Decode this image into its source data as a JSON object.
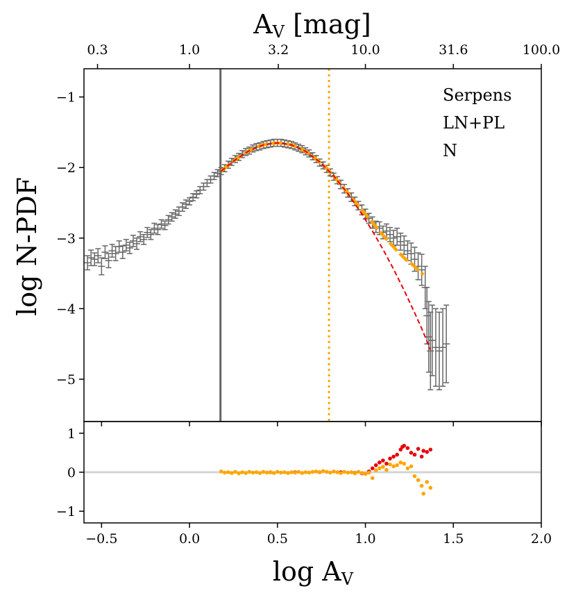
{
  "chart_data": {
    "type": "scatter",
    "title": "",
    "legend": [
      "Serpens",
      "LN+PL",
      "N"
    ],
    "xlabel_main": "log A",
    "xlabel_sub": "V",
    "ylabel": "log N-PDF",
    "top_xlabel_main": "A",
    "top_xlabel_sub": "V",
    "top_xlabel_rest": " [mag]",
    "xlim": [
      -0.6,
      2.0
    ],
    "ylim": [
      -5.6,
      -0.6
    ],
    "residual_ylim": [
      -1.3,
      1.3
    ],
    "x_ticks": [
      -0.5,
      0.0,
      0.5,
      1.0,
      1.5,
      2.0
    ],
    "x_tick_labels": [
      "−0.5",
      "0.0",
      "0.5",
      "1.0",
      "1.5",
      "2.0"
    ],
    "y_ticks": [
      -1,
      -2,
      -3,
      -4,
      -5
    ],
    "y_tick_labels": [
      "−1",
      "−2",
      "−3",
      "−4",
      "−5"
    ],
    "residual_y_ticks": [
      1,
      0,
      -1
    ],
    "residual_y_tick_labels": [
      "1",
      "0",
      "−1"
    ],
    "top_ticks": [
      -0.523,
      0.0,
      0.505,
      1.0,
      1.5,
      2.0
    ],
    "top_tick_labels": [
      "0.3",
      "1.0",
      "3.2",
      "10.0",
      "31.6",
      "100.0"
    ],
    "completeness_line_x": 0.176,
    "transition_line_x": 0.793,
    "data_points": [
      [
        -0.58,
        -3.35,
        0.1
      ],
      [
        -0.56,
        -3.28,
        0.11
      ],
      [
        -0.54,
        -3.3,
        0.09
      ],
      [
        -0.52,
        -3.25,
        0.1
      ],
      [
        -0.5,
        -3.4,
        0.12
      ],
      [
        -0.48,
        -3.2,
        0.09
      ],
      [
        -0.46,
        -3.32,
        0.1
      ],
      [
        -0.44,
        -3.18,
        0.09
      ],
      [
        -0.42,
        -3.22,
        0.1
      ],
      [
        -0.4,
        -3.12,
        0.08
      ],
      [
        -0.38,
        -3.2,
        0.09
      ],
      [
        -0.36,
        -3.1,
        0.08
      ],
      [
        -0.34,
        -3.14,
        0.08
      ],
      [
        -0.32,
        -3.04,
        0.08
      ],
      [
        -0.3,
        -3.08,
        0.08
      ],
      [
        -0.28,
        -2.98,
        0.07
      ],
      [
        -0.26,
        -3.02,
        0.07
      ],
      [
        -0.24,
        -2.92,
        0.07
      ],
      [
        -0.22,
        -2.95,
        0.07
      ],
      [
        -0.2,
        -2.86,
        0.07
      ],
      [
        -0.18,
        -2.88,
        0.07
      ],
      [
        -0.16,
        -2.8,
        0.06
      ],
      [
        -0.14,
        -2.82,
        0.06
      ],
      [
        -0.12,
        -2.74,
        0.06
      ],
      [
        -0.1,
        -2.7,
        0.06
      ],
      [
        -0.08,
        -2.66,
        0.06
      ],
      [
        -0.06,
        -2.62,
        0.06
      ],
      [
        -0.04,
        -2.56,
        0.06
      ],
      [
        -0.02,
        -2.52,
        0.06
      ],
      [
        0.0,
        -2.48,
        0.05
      ],
      [
        0.02,
        -2.42,
        0.05
      ],
      [
        0.04,
        -2.38,
        0.05
      ],
      [
        0.06,
        -2.32,
        0.05
      ],
      [
        0.08,
        -2.27,
        0.05
      ],
      [
        0.1,
        -2.22,
        0.05
      ],
      [
        0.12,
        -2.17,
        0.05
      ],
      [
        0.14,
        -2.12,
        0.05
      ],
      [
        0.16,
        -2.08,
        0.05
      ],
      [
        0.18,
        -2.05,
        0.05
      ],
      [
        0.2,
        -2.01,
        0.05
      ],
      [
        0.22,
        -1.96,
        0.05
      ],
      [
        0.24,
        -1.92,
        0.05
      ],
      [
        0.26,
        -1.88,
        0.05
      ],
      [
        0.28,
        -1.85,
        0.05
      ],
      [
        0.3,
        -1.81,
        0.05
      ],
      [
        0.32,
        -1.78,
        0.05
      ],
      [
        0.34,
        -1.76,
        0.05
      ],
      [
        0.36,
        -1.73,
        0.05
      ],
      [
        0.38,
        -1.71,
        0.05
      ],
      [
        0.4,
        -1.7,
        0.05
      ],
      [
        0.42,
        -1.68,
        0.05
      ],
      [
        0.44,
        -1.67,
        0.05
      ],
      [
        0.46,
        -1.66,
        0.05
      ],
      [
        0.48,
        -1.65,
        0.05
      ],
      [
        0.5,
        -1.65,
        0.05
      ],
      [
        0.52,
        -1.65,
        0.05
      ],
      [
        0.54,
        -1.66,
        0.05
      ],
      [
        0.56,
        -1.67,
        0.05
      ],
      [
        0.58,
        -1.68,
        0.05
      ],
      [
        0.6,
        -1.7,
        0.05
      ],
      [
        0.62,
        -1.72,
        0.05
      ],
      [
        0.64,
        -1.74,
        0.05
      ],
      [
        0.66,
        -1.77,
        0.05
      ],
      [
        0.68,
        -1.8,
        0.05
      ],
      [
        0.7,
        -1.84,
        0.05
      ],
      [
        0.72,
        -1.88,
        0.05
      ],
      [
        0.74,
        -1.93,
        0.05
      ],
      [
        0.76,
        -1.97,
        0.05
      ],
      [
        0.78,
        -2.02,
        0.05
      ],
      [
        0.8,
        -2.07,
        0.05
      ],
      [
        0.82,
        -2.13,
        0.05
      ],
      [
        0.84,
        -2.18,
        0.05
      ],
      [
        0.86,
        -2.24,
        0.06
      ],
      [
        0.88,
        -2.3,
        0.06
      ],
      [
        0.9,
        -2.36,
        0.06
      ],
      [
        0.92,
        -2.42,
        0.06
      ],
      [
        0.94,
        -2.48,
        0.06
      ],
      [
        0.96,
        -2.54,
        0.06
      ],
      [
        0.98,
        -2.6,
        0.07
      ],
      [
        1.0,
        -2.66,
        0.07
      ],
      [
        1.02,
        -2.72,
        0.07
      ],
      [
        1.04,
        -2.78,
        0.08
      ],
      [
        1.06,
        -2.84,
        0.08
      ],
      [
        1.08,
        -2.86,
        0.09
      ],
      [
        1.1,
        -2.92,
        0.09
      ],
      [
        1.12,
        -2.9,
        0.1
      ],
      [
        1.14,
        -2.95,
        0.1
      ],
      [
        1.16,
        -3.0,
        0.11
      ],
      [
        1.18,
        -2.98,
        0.12
      ],
      [
        1.2,
        -3.05,
        0.12
      ],
      [
        1.22,
        -3.1,
        0.13
      ],
      [
        1.24,
        -3.18,
        0.14
      ],
      [
        1.26,
        -3.22,
        0.15
      ],
      [
        1.28,
        -3.3,
        0.17
      ],
      [
        1.3,
        -3.4,
        0.19
      ],
      [
        1.32,
        -3.45,
        0.22
      ],
      [
        1.34,
        -3.7,
        0.3
      ],
      [
        1.35,
        -4.1,
        0.4
      ],
      [
        1.36,
        -4.4,
        0.5
      ],
      [
        1.37,
        -4.6,
        0.55
      ],
      [
        1.38,
        -4.45,
        0.5
      ],
      [
        1.4,
        -4.55,
        0.55
      ],
      [
        1.42,
        -4.6,
        0.55
      ],
      [
        1.44,
        -4.55,
        0.55
      ],
      [
        1.46,
        -4.5,
        0.55
      ]
    ],
    "ln_pl_fit": [
      [
        0.18,
        -2.05
      ],
      [
        0.22,
        -1.97
      ],
      [
        0.26,
        -1.89
      ],
      [
        0.3,
        -1.82
      ],
      [
        0.34,
        -1.76
      ],
      [
        0.38,
        -1.71
      ],
      [
        0.42,
        -1.68
      ],
      [
        0.46,
        -1.66
      ],
      [
        0.5,
        -1.65
      ],
      [
        0.54,
        -1.66
      ],
      [
        0.58,
        -1.68
      ],
      [
        0.62,
        -1.72
      ],
      [
        0.66,
        -1.77
      ],
      [
        0.7,
        -1.84
      ],
      [
        0.74,
        -1.92
      ],
      [
        0.78,
        -2.01
      ],
      [
        0.82,
        -2.12
      ],
      [
        0.86,
        -2.24
      ],
      [
        0.9,
        -2.36
      ],
      [
        0.94,
        -2.48
      ],
      [
        0.98,
        -2.6
      ],
      [
        1.02,
        -2.72
      ],
      [
        1.06,
        -2.84
      ],
      [
        1.1,
        -2.96
      ],
      [
        1.14,
        -3.07
      ],
      [
        1.18,
        -3.18
      ],
      [
        1.22,
        -3.28
      ],
      [
        1.26,
        -3.36
      ],
      [
        1.3,
        -3.45
      ],
      [
        1.33,
        -3.52
      ]
    ],
    "ln_fit": [
      [
        0.18,
        -2.05
      ],
      [
        0.26,
        -1.89
      ],
      [
        0.34,
        -1.76
      ],
      [
        0.42,
        -1.68
      ],
      [
        0.5,
        -1.65
      ],
      [
        0.58,
        -1.68
      ],
      [
        0.66,
        -1.77
      ],
      [
        0.74,
        -1.92
      ],
      [
        0.82,
        -2.12
      ],
      [
        0.9,
        -2.37
      ],
      [
        0.98,
        -2.66
      ],
      [
        1.04,
        -2.9
      ],
      [
        1.1,
        -3.16
      ],
      [
        1.16,
        -3.44
      ],
      [
        1.22,
        -3.74
      ],
      [
        1.28,
        -4.06
      ],
      [
        1.32,
        -4.28
      ],
      [
        1.37,
        -4.58
      ]
    ],
    "residuals_ln_pl": [
      [
        0.18,
        0.02
      ],
      [
        0.2,
        -0.01
      ],
      [
        0.22,
        0.0
      ],
      [
        0.24,
        -0.02
      ],
      [
        0.26,
        0.01
      ],
      [
        0.28,
        -0.03
      ],
      [
        0.3,
        0.0
      ],
      [
        0.32,
        -0.02
      ],
      [
        0.34,
        0.01
      ],
      [
        0.36,
        -0.01
      ],
      [
        0.38,
        0.0
      ],
      [
        0.4,
        -0.02
      ],
      [
        0.42,
        0.01
      ],
      [
        0.44,
        -0.01
      ],
      [
        0.46,
        0.0
      ],
      [
        0.48,
        -0.02
      ],
      [
        0.5,
        0.01
      ],
      [
        0.52,
        -0.01
      ],
      [
        0.54,
        0.0
      ],
      [
        0.56,
        -0.02
      ],
      [
        0.58,
        0.0
      ],
      [
        0.6,
        -0.01
      ],
      [
        0.62,
        0.01
      ],
      [
        0.64,
        -0.02
      ],
      [
        0.66,
        0.0
      ],
      [
        0.68,
        -0.01
      ],
      [
        0.7,
        0.01
      ],
      [
        0.72,
        0.02
      ],
      [
        0.74,
        0.0
      ],
      [
        0.76,
        0.03
      ],
      [
        0.78,
        0.01
      ],
      [
        0.8,
        -0.01
      ],
      [
        0.82,
        0.02
      ],
      [
        0.84,
        0.0
      ],
      [
        0.86,
        -0.02
      ],
      [
        0.88,
        0.01
      ],
      [
        0.9,
        -0.01
      ],
      [
        0.92,
        0.0
      ],
      [
        0.94,
        -0.03
      ],
      [
        0.96,
        0.01
      ],
      [
        0.98,
        -0.02
      ],
      [
        1.0,
        -0.04
      ],
      [
        1.02,
        -0.01
      ],
      [
        1.04,
        -0.15
      ],
      [
        1.06,
        0.05
      ],
      [
        1.08,
        0.1
      ],
      [
        1.1,
        0.14
      ],
      [
        1.12,
        0.06
      ],
      [
        1.14,
        0.2
      ],
      [
        1.16,
        0.15
      ],
      [
        1.18,
        0.18
      ],
      [
        1.2,
        0.25
      ],
      [
        1.22,
        0.22
      ],
      [
        1.24,
        0.1
      ],
      [
        1.26,
        0.15
      ],
      [
        1.28,
        -0.1
      ],
      [
        1.3,
        -0.2
      ],
      [
        1.32,
        -0.35
      ],
      [
        1.33,
        -0.55
      ],
      [
        1.35,
        -0.25
      ],
      [
        1.37,
        -0.4
      ]
    ],
    "residuals_ln": [
      [
        0.46,
        0.0
      ],
      [
        0.6,
        0.0
      ],
      [
        0.74,
        0.0
      ],
      [
        0.86,
        0.0
      ],
      [
        0.94,
        -0.02
      ],
      [
        0.98,
        -0.03
      ],
      [
        1.0,
        -0.04
      ],
      [
        1.02,
        0.02
      ],
      [
        1.04,
        0.1
      ],
      [
        1.06,
        0.18
      ],
      [
        1.08,
        0.25
      ],
      [
        1.1,
        0.3
      ],
      [
        1.12,
        0.22
      ],
      [
        1.14,
        0.35
      ],
      [
        1.16,
        0.4
      ],
      [
        1.18,
        0.45
      ],
      [
        1.2,
        0.58
      ],
      [
        1.21,
        0.65
      ],
      [
        1.22,
        0.68
      ],
      [
        1.24,
        0.62
      ],
      [
        1.26,
        0.5
      ],
      [
        1.28,
        0.45
      ],
      [
        1.3,
        0.6
      ],
      [
        1.32,
        0.4
      ],
      [
        1.33,
        0.55
      ],
      [
        1.35,
        0.52
      ],
      [
        1.37,
        0.58
      ]
    ],
    "colors": {
      "data": "#666666",
      "ln_pl": "#FFA500",
      "ln": "#E8000B",
      "zero_line": "#D3D3D3",
      "completeness": "#666666",
      "transition": "#FFA500"
    }
  }
}
